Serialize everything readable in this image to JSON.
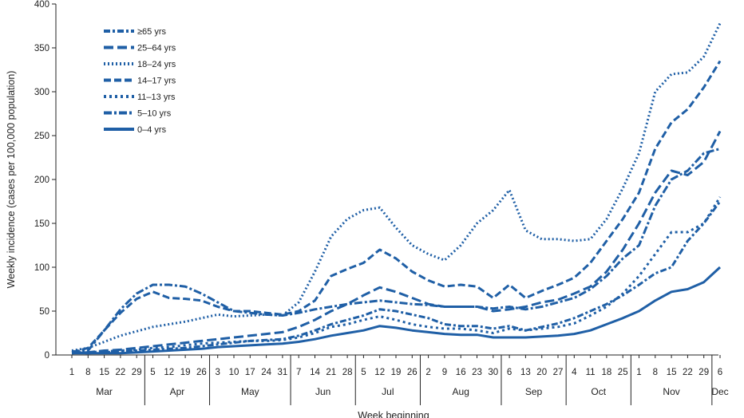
{
  "colors": {
    "series": "#1f5fa6",
    "axis": "#222222",
    "background": "#ffffff"
  },
  "chart_data": {
    "type": "line",
    "title": "",
    "xlabel": "Week beginning",
    "ylabel": "Weekly incidence (cases per 100,000 population)",
    "ylim": [
      0,
      400
    ],
    "yticks": [
      0,
      50,
      100,
      150,
      200,
      250,
      300,
      350,
      400
    ],
    "grid": false,
    "legend_position": "top-left",
    "weeks": [
      "1",
      "8",
      "15",
      "22",
      "29",
      "5",
      "12",
      "19",
      "26",
      "3",
      "10",
      "17",
      "24",
      "31",
      "7",
      "14",
      "21",
      "28",
      "5",
      "12",
      "19",
      "26",
      "2",
      "9",
      "16",
      "23",
      "30",
      "6",
      "13",
      "20",
      "27",
      "4",
      "11",
      "18",
      "25",
      "1",
      "8",
      "15",
      "22",
      "29",
      "6"
    ],
    "months": [
      {
        "label": "Mar",
        "first": 0,
        "last": 4
      },
      {
        "label": "Apr",
        "first": 5,
        "last": 8
      },
      {
        "label": "May",
        "first": 9,
        "last": 13
      },
      {
        "label": "Jun",
        "first": 14,
        "last": 17
      },
      {
        "label": "Jul",
        "first": 18,
        "last": 21
      },
      {
        "label": "Aug",
        "first": 22,
        "last": 26
      },
      {
        "label": "Sep",
        "first": 27,
        "last": 30
      },
      {
        "label": "Oct",
        "first": 31,
        "last": 34
      },
      {
        "label": "Nov",
        "first": 35,
        "last": 39
      },
      {
        "label": "Dec",
        "first": 40,
        "last": 40
      }
    ],
    "series": [
      {
        "name": "≥65 yrs",
        "dash": "8,3,3,3",
        "values": [
          3,
          2,
          3,
          4,
          5,
          6,
          7,
          8,
          10,
          12,
          14,
          16,
          17,
          18,
          22,
          28,
          35,
          40,
          45,
          52,
          50,
          46,
          42,
          35,
          33,
          33,
          30,
          33,
          28,
          32,
          36,
          42,
          50,
          58,
          68,
          80,
          93,
          100,
          130,
          150,
          175
        ]
      },
      {
        "name": "25–64 yrs",
        "dash": "12,5",
        "values": [
          3,
          3,
          5,
          6,
          8,
          10,
          12,
          14,
          16,
          18,
          20,
          22,
          24,
          26,
          32,
          40,
          50,
          58,
          68,
          77,
          72,
          65,
          58,
          55,
          55,
          55,
          50,
          52,
          55,
          60,
          63,
          70,
          78,
          95,
          120,
          150,
          185,
          210,
          205,
          220,
          255
        ]
      },
      {
        "name": "18–24 yrs",
        "dash": "2,3",
        "values": [
          5,
          8,
          15,
          22,
          27,
          32,
          35,
          38,
          42,
          46,
          44,
          45,
          46,
          45,
          60,
          95,
          135,
          155,
          165,
          168,
          145,
          125,
          115,
          108,
          125,
          150,
          165,
          188,
          142,
          132,
          132,
          130,
          132,
          155,
          190,
          230,
          300,
          320,
          322,
          340,
          378
        ]
      },
      {
        "name": "14–17 yrs",
        "dash": "9,4",
        "values": [
          3,
          8,
          28,
          48,
          64,
          72,
          65,
          64,
          62,
          55,
          50,
          50,
          48,
          46,
          50,
          62,
          90,
          98,
          105,
          120,
          110,
          95,
          85,
          78,
          80,
          78,
          65,
          80,
          65,
          73,
          80,
          88,
          105,
          130,
          155,
          185,
          235,
          265,
          280,
          305,
          335
        ]
      },
      {
        "name": "11–13 yrs",
        "dash": "3,4",
        "values": [
          2,
          3,
          4,
          5,
          6,
          8,
          9,
          11,
          13,
          14,
          15,
          16,
          16,
          17,
          20,
          25,
          32,
          35,
          40,
          44,
          40,
          35,
          32,
          30,
          30,
          28,
          25,
          30,
          28,
          30,
          32,
          36,
          45,
          55,
          70,
          90,
          115,
          140,
          140,
          150,
          180
        ]
      },
      {
        "name": "5–10 yrs",
        "dash": "10,3,3,3",
        "values": [
          4,
          5,
          28,
          52,
          70,
          80,
          80,
          78,
          70,
          60,
          50,
          48,
          46,
          45,
          48,
          52,
          55,
          58,
          60,
          62,
          60,
          58,
          57,
          55,
          55,
          55,
          53,
          55,
          52,
          55,
          60,
          65,
          75,
          90,
          110,
          125,
          170,
          200,
          210,
          230,
          235
        ]
      },
      {
        "name": "0–4 yrs",
        "dash": "",
        "values": [
          2,
          2,
          2,
          2,
          3,
          4,
          5,
          6,
          7,
          9,
          10,
          11,
          12,
          13,
          15,
          18,
          22,
          25,
          28,
          33,
          31,
          28,
          26,
          24,
          23,
          23,
          20,
          20,
          20,
          21,
          22,
          24,
          28,
          35,
          42,
          50,
          62,
          72,
          75,
          83,
          100
        ]
      }
    ]
  }
}
